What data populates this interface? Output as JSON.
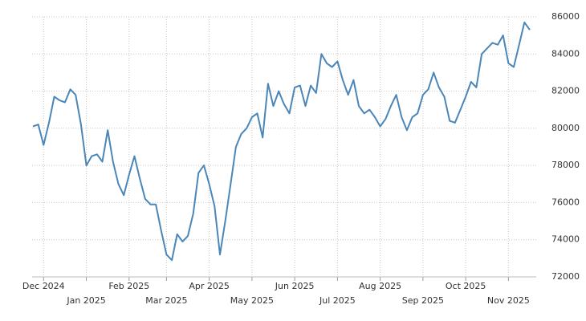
{
  "chart_data": {
    "type": "line",
    "color": "#4a86b8",
    "grid": true,
    "categories": [
      null,
      null,
      "Dec 2024",
      null,
      null,
      null,
      null,
      null,
      null,
      null,
      "Jan 2025",
      null,
      null,
      null,
      null,
      null,
      null,
      null,
      "Feb 2025",
      null,
      null,
      null,
      null,
      null,
      null,
      "Mar 2025",
      null,
      null,
      null,
      null,
      null,
      null,
      null,
      "Apr 2025",
      null,
      null,
      null,
      null,
      null,
      null,
      null,
      "May 2025",
      null,
      null,
      null,
      null,
      null,
      null,
      null,
      "Jun 2025",
      null,
      null,
      null,
      null,
      null,
      null,
      null,
      "Jul 2025",
      null,
      null,
      null,
      null,
      null,
      null,
      null,
      "Aug 2025",
      null,
      null,
      null,
      null,
      null,
      null,
      null,
      "Sep 2025",
      null,
      null,
      null,
      null,
      null,
      null,
      null,
      "Oct 2025",
      null,
      null,
      null,
      null,
      null,
      null,
      null,
      "Nov 2025",
      null,
      null,
      null,
      null
    ],
    "values": [
      80100,
      80200,
      79100,
      80300,
      81700,
      81500,
      81400,
      82100,
      81800,
      80200,
      78000,
      78500,
      78600,
      78200,
      79900,
      78200,
      77000,
      76400,
      77500,
      78500,
      77300,
      76200,
      75900,
      75900,
      74500,
      73200,
      72900,
      74300,
      73900,
      74200,
      75400,
      77600,
      78000,
      77000,
      75800,
      73200,
      75000,
      77000,
      79000,
      79700,
      80000,
      80600,
      80800,
      79500,
      82400,
      81200,
      82000,
      81300,
      80800,
      82200,
      82300,
      81200,
      82300,
      81900,
      84000,
      83500,
      83300,
      83600,
      82600,
      81800,
      82600,
      81200,
      80800,
      81000,
      80600,
      80100,
      80500,
      81200,
      81800,
      80600,
      79900,
      80600,
      80800,
      81800,
      82100,
      83000,
      82200,
      81700,
      80400,
      80300,
      81000,
      81700,
      82500,
      82200,
      84000,
      84300,
      84600,
      84500,
      85000,
      83500,
      83300,
      84500,
      85700,
      85300
    ],
    "ylim": [
      72000,
      86000
    ],
    "yticks": [
      72000,
      74000,
      76000,
      78000,
      80000,
      82000,
      84000,
      86000
    ]
  }
}
